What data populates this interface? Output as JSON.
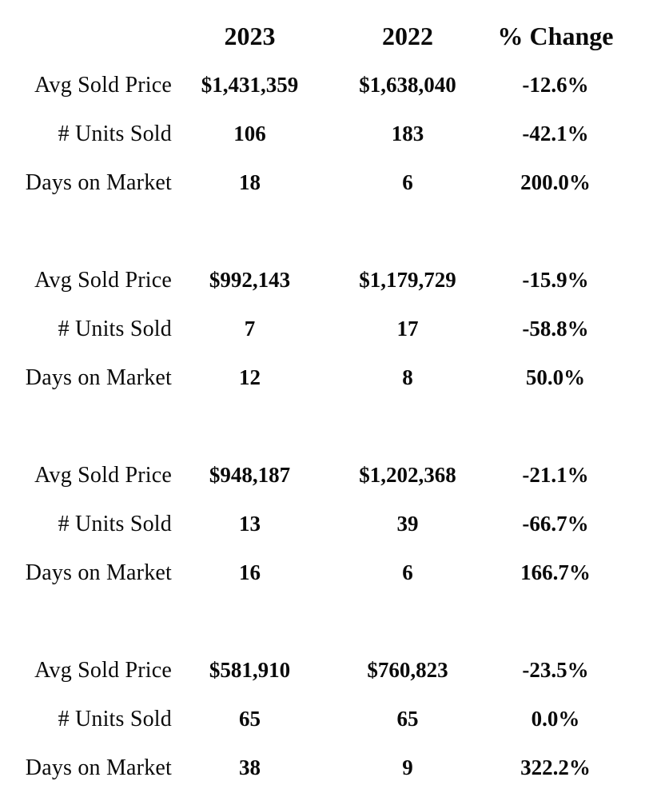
{
  "colors": {
    "text": "#0a0a0a",
    "background": "#ffffff"
  },
  "table": {
    "headers": {
      "col_2023": "2023",
      "col_2022": "2022",
      "col_change": "% Change"
    },
    "sections": [
      {
        "rows": [
          {
            "label": "Avg Sold Price",
            "y2023": "$1,431,359",
            "y2022": "$1,638,040",
            "change": "-12.6%"
          },
          {
            "label": "# Units Sold",
            "y2023": "106",
            "y2022": "183",
            "change": "-42.1%"
          },
          {
            "label": "Days on Market",
            "y2023": "18",
            "y2022": "6",
            "change": "200.0%"
          }
        ]
      },
      {
        "rows": [
          {
            "label": "Avg Sold Price",
            "y2023": "$992,143",
            "y2022": "$1,179,729",
            "change": "-15.9%"
          },
          {
            "label": "# Units Sold",
            "y2023": "7",
            "y2022": "17",
            "change": "-58.8%"
          },
          {
            "label": "Days on Market",
            "y2023": "12",
            "y2022": "8",
            "change": "50.0%"
          }
        ]
      },
      {
        "rows": [
          {
            "label": "Avg Sold Price",
            "y2023": "$948,187",
            "y2022": "$1,202,368",
            "change": "-21.1%"
          },
          {
            "label": "# Units Sold",
            "y2023": "13",
            "y2022": "39",
            "change": "-66.7%"
          },
          {
            "label": "Days on Market",
            "y2023": "16",
            "y2022": "6",
            "change": "166.7%"
          }
        ]
      },
      {
        "rows": [
          {
            "label": "Avg Sold Price",
            "y2023": "$581,910",
            "y2022": "$760,823",
            "change": "-23.5%"
          },
          {
            "label": "# Units Sold",
            "y2023": "65",
            "y2022": "65",
            "change": "0.0%"
          },
          {
            "label": "Days on Market",
            "y2023": "38",
            "y2022": "9",
            "change": "322.2%"
          }
        ]
      }
    ]
  }
}
